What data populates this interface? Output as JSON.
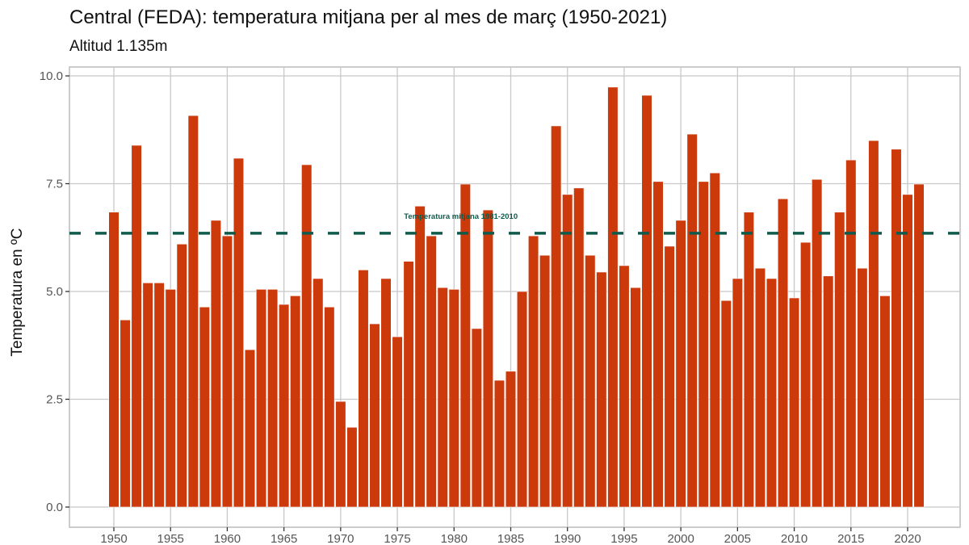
{
  "chart_data": {
    "type": "bar",
    "title": "Central (FEDA): temperatura mitjana per al mes de març (1950-2021)",
    "subtitle": "Altitud 1.135m",
    "xlabel": "",
    "ylabel": "Temperatura en ºC",
    "ylim": [
      0,
      10
    ],
    "yticks": [
      "0.0",
      "2.5",
      "5.0",
      "7.5",
      "10.0"
    ],
    "xticks": [
      "1950",
      "1955",
      "1960",
      "1965",
      "1970",
      "1975",
      "1980",
      "1985",
      "1990",
      "1995",
      "2000",
      "2005",
      "2010",
      "2015",
      "2020"
    ],
    "grid": true,
    "bar_color": "#cc3a0c",
    "x": [
      1950,
      1951,
      1952,
      1953,
      1954,
      1955,
      1956,
      1957,
      1958,
      1959,
      1960,
      1961,
      1962,
      1963,
      1964,
      1965,
      1966,
      1967,
      1968,
      1969,
      1970,
      1971,
      1972,
      1973,
      1974,
      1975,
      1976,
      1977,
      1978,
      1979,
      1980,
      1981,
      1982,
      1983,
      1984,
      1985,
      1986,
      1987,
      1988,
      1989,
      1990,
      1991,
      1992,
      1993,
      1994,
      1995,
      1996,
      1997,
      1998,
      1999,
      2000,
      2001,
      2002,
      2003,
      2004,
      2005,
      2006,
      2007,
      2008,
      2009,
      2010,
      2011,
      2012,
      2013,
      2014,
      2015,
      2016,
      2017,
      2018,
      2019,
      2020,
      2021
    ],
    "values": [
      6.84,
      4.34,
      8.39,
      5.2,
      5.2,
      5.05,
      6.1,
      9.08,
      4.64,
      6.65,
      6.29,
      8.09,
      3.65,
      5.05,
      5.05,
      4.7,
      4.9,
      7.94,
      5.3,
      4.64,
      2.45,
      1.85,
      5.5,
      4.25,
      5.3,
      3.95,
      5.7,
      6.98,
      6.29,
      5.09,
      5.05,
      7.49,
      4.14,
      6.89,
      2.94,
      3.15,
      5.0,
      6.29,
      5.84,
      8.84,
      7.25,
      7.4,
      5.84,
      5.45,
      9.74,
      5.6,
      5.09,
      9.55,
      7.55,
      6.05,
      6.65,
      8.65,
      7.55,
      7.75,
      4.79,
      5.3,
      6.84,
      5.54,
      5.3,
      7.15,
      4.85,
      6.14,
      7.6,
      5.36,
      6.84,
      8.05,
      5.54,
      8.5,
      4.9,
      8.3,
      7.25,
      7.49
    ],
    "reference_line": {
      "value": 6.35,
      "label": "Temperatura mitjana 1981-2010",
      "color": "#0e5a4b",
      "style": "dashed"
    }
  }
}
